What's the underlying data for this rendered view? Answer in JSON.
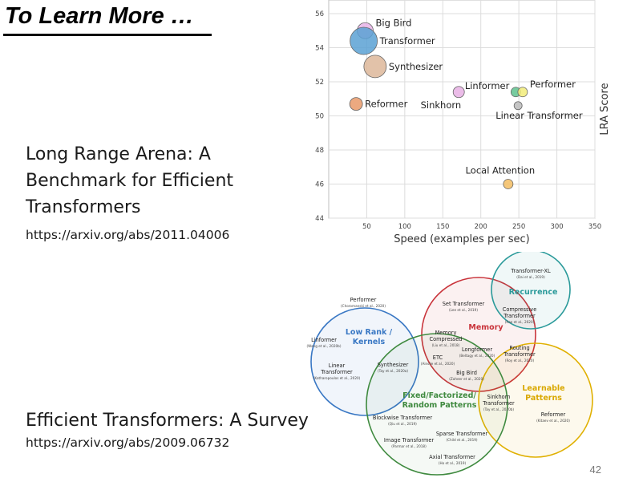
{
  "slide": {
    "title": "To Learn More …",
    "page_number": "42"
  },
  "ref1": {
    "title_lines": [
      "Long Range Arena: A",
      "Benchmark for Efficient",
      "Transformers"
    ],
    "url": "https://arxiv.org/abs/2011.04006"
  },
  "ref2": {
    "title": "Efficient Transformers: A Survey",
    "url": "https://arxiv.org/abs/2009.06732"
  },
  "chart_data": {
    "type": "scatter",
    "title": "",
    "xlabel": "Speed (examples per sec)",
    "ylabel": "LRA Score",
    "xlim": [
      0,
      350
    ],
    "ylim": [
      44,
      56.8
    ],
    "xticks": [
      50,
      100,
      150,
      200,
      250,
      300,
      350
    ],
    "yticks": [
      44,
      46,
      48,
      50,
      52,
      54,
      56
    ],
    "grid": true,
    "points": [
      {
        "label": "Big Bird",
        "x": 48,
        "y": 55.0,
        "size": 10,
        "color": "#e8b4e8",
        "label_pos": "right-up"
      },
      {
        "label": "Transformer",
        "x": 46,
        "y": 54.4,
        "size": 17,
        "color": "#5aa1d4",
        "label_pos": "right"
      },
      {
        "label": "Synthesizer",
        "x": 61,
        "y": 52.9,
        "size": 14,
        "color": "#ddb79a",
        "label_pos": "right"
      },
      {
        "label": "Reformer",
        "x": 36,
        "y": 50.7,
        "size": 8,
        "color": "#e99a6a",
        "label_pos": "right"
      },
      {
        "label": "Sinkhorn",
        "x": 171,
        "y": 51.4,
        "size": 7,
        "color": "#e8b0e4",
        "label_pos": "below-left"
      },
      {
        "label": "Linformer",
        "x": 246,
        "y": 51.4,
        "size": 6,
        "color": "#5ec28e",
        "label_pos": "left-up"
      },
      {
        "label": "Performer",
        "x": 255,
        "y": 51.4,
        "size": 6,
        "color": "#f2ec7a",
        "label_pos": "right-up"
      },
      {
        "label": "Linear Transformer",
        "x": 249,
        "y": 50.6,
        "size": 5,
        "color": "#bbbbbb",
        "label_pos": "below-right"
      },
      {
        "label": "Local Attention",
        "x": 236,
        "y": 46.0,
        "size": 6,
        "color": "#f3bd63",
        "label_pos": "above"
      }
    ]
  },
  "venn": {
    "circles": [
      {
        "name": "Low Rank / Kernels",
        "title_lines": [
          "Low Rank /",
          "Kernels"
        ],
        "color": "#3a78c4",
        "fill": "#3a78c4"
      },
      {
        "name": "Memory",
        "title_lines": [
          "Memory"
        ],
        "color": "#c9343b",
        "fill": "#c9343b"
      },
      {
        "name": "Recurrence",
        "title_lines": [
          "Recurrence"
        ],
        "color": "#2a9a9a",
        "fill": "#2a9a9a"
      },
      {
        "name": "Fixed/Factorized/Random Patterns",
        "title_lines": [
          "Fixed/Factorized/",
          "Random Patterns"
        ],
        "color": "#3f8a3f",
        "fill": "#3f8a3f"
      },
      {
        "name": "Learnable Patterns",
        "title_lines": [
          "Learnable",
          "Patterns"
        ],
        "color": "#e0b000",
        "fill": "#e0b000"
      }
    ],
    "items": [
      {
        "name": "Transformer-XL",
        "cite": "(Dai et al., 2019)"
      },
      {
        "name": "Performer",
        "cite": "(Choromanski et al., 2020)"
      },
      {
        "name": "Set Transformer",
        "cite": "(Lee et al., 2019)"
      },
      {
        "name": "Compressive Transformer",
        "cite": "(Rae et al., 2020)"
      },
      {
        "name": "Linformer",
        "cite": "(Wang et al., 2020b)"
      },
      {
        "name": "Memory Compressed",
        "cite": "(Liu et al., 2018)"
      },
      {
        "name": "Longformer",
        "cite": "(Beltagy et al., 2020)"
      },
      {
        "name": "Routing Transformer",
        "cite": "(Roy et al., 2020)"
      },
      {
        "name": "Linear Transformer",
        "cite": "(Katharopoulos et al., 2020)"
      },
      {
        "name": "Synthesizer",
        "cite": "(Tay et al., 2020a)"
      },
      {
        "name": "ETC",
        "cite": "(Ainslie et al., 2020)"
      },
      {
        "name": "Big Bird",
        "cite": "(Zaheer et al., 2020)"
      },
      {
        "name": "Sinkhorn Transformer",
        "cite": "(Tay et al., 2020b)"
      },
      {
        "name": "Reformer",
        "cite": "(Kitaev et al., 2020)"
      },
      {
        "name": "Blockwise Transformer",
        "cite": "(Qiu et al., 2019)"
      },
      {
        "name": "Sparse Transformer",
        "cite": "(Child et al., 2019)"
      },
      {
        "name": "Image Transformer",
        "cite": "(Parmar et al., 2018)"
      },
      {
        "name": "Axial Transformer",
        "cite": "(Ho et al., 2019)"
      }
    ]
  }
}
